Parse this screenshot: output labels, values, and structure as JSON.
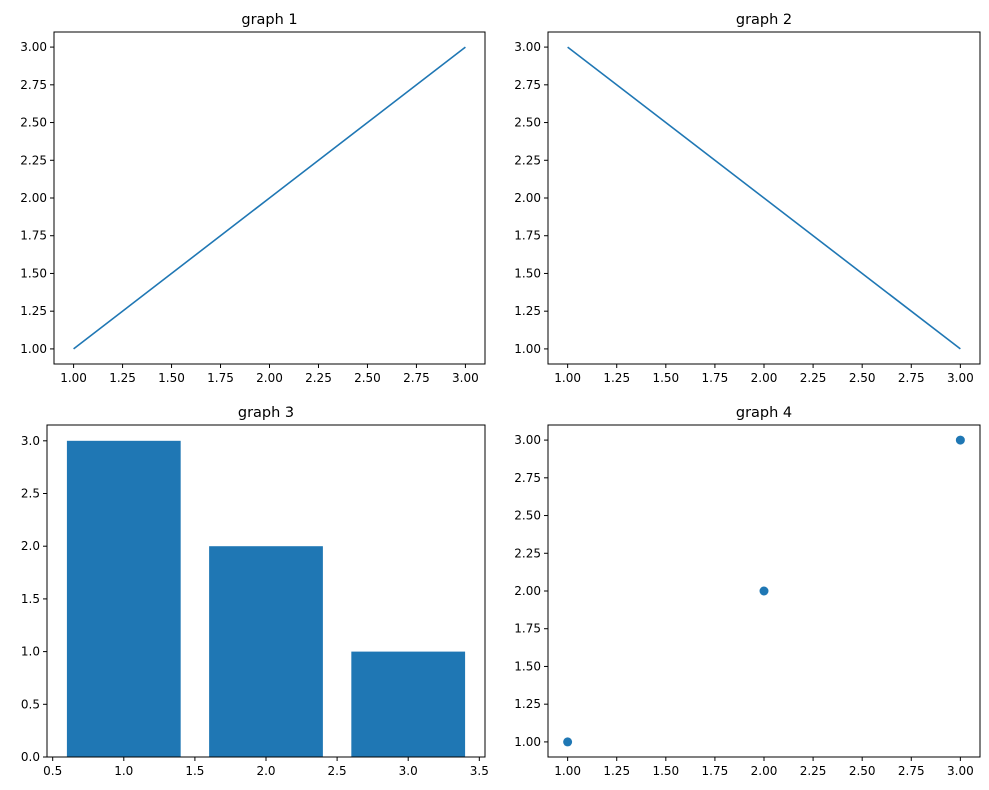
{
  "chart_data": [
    {
      "type": "line",
      "title": "graph 1",
      "x": [
        1,
        2,
        3
      ],
      "y": [
        1,
        2,
        3
      ],
      "xlim": [
        0.9,
        3.1
      ],
      "ylim": [
        0.9,
        3.1
      ],
      "xticks": [
        1.0,
        1.25,
        1.5,
        1.75,
        2.0,
        2.25,
        2.5,
        2.75,
        3.0
      ],
      "yticks": [
        1.0,
        1.25,
        1.5,
        1.75,
        2.0,
        2.25,
        2.5,
        2.75,
        3.0
      ],
      "xtick_labels": [
        "1.00",
        "1.25",
        "1.50",
        "1.75",
        "2.00",
        "2.25",
        "2.50",
        "2.75",
        "3.00"
      ],
      "ytick_labels": [
        "1.00",
        "1.25",
        "1.50",
        "1.75",
        "2.00",
        "2.25",
        "2.50",
        "2.75",
        "3.00"
      ],
      "color": "#1f77b4",
      "grid": false
    },
    {
      "type": "line",
      "title": "graph 2",
      "x": [
        1,
        2,
        3
      ],
      "y": [
        3,
        2,
        1
      ],
      "xlim": [
        0.9,
        3.1
      ],
      "ylim": [
        0.9,
        3.1
      ],
      "xticks": [
        1.0,
        1.25,
        1.5,
        1.75,
        2.0,
        2.25,
        2.5,
        2.75,
        3.0
      ],
      "yticks": [
        1.0,
        1.25,
        1.5,
        1.75,
        2.0,
        2.25,
        2.5,
        2.75,
        3.0
      ],
      "xtick_labels": [
        "1.00",
        "1.25",
        "1.50",
        "1.75",
        "2.00",
        "2.25",
        "2.50",
        "2.75",
        "3.00"
      ],
      "ytick_labels": [
        "1.00",
        "1.25",
        "1.50",
        "1.75",
        "2.00",
        "2.25",
        "2.50",
        "2.75",
        "3.00"
      ],
      "color": "#1f77b4",
      "grid": false
    },
    {
      "type": "bar",
      "title": "graph 3",
      "x": [
        1,
        2,
        3
      ],
      "values": [
        3,
        2,
        1
      ],
      "bar_width": 0.8,
      "xlim": [
        0.46,
        3.54
      ],
      "ylim": [
        0,
        3.15
      ],
      "xticks": [
        0.5,
        1.0,
        1.5,
        2.0,
        2.5,
        3.0,
        3.5
      ],
      "yticks": [
        0.0,
        0.5,
        1.0,
        1.5,
        2.0,
        2.5,
        3.0
      ],
      "xtick_labels": [
        "0.5",
        "1.0",
        "1.5",
        "2.0",
        "2.5",
        "3.0",
        "3.5"
      ],
      "ytick_labels": [
        "0.0",
        "0.5",
        "1.0",
        "1.5",
        "2.0",
        "2.5",
        "3.0"
      ],
      "color": "#1f77b4",
      "grid": false
    },
    {
      "type": "scatter",
      "title": "graph 4",
      "x": [
        1,
        2,
        3
      ],
      "y": [
        1,
        2,
        3
      ],
      "xlim": [
        0.9,
        3.1
      ],
      "ylim": [
        0.9,
        3.1
      ],
      "xticks": [
        1.0,
        1.25,
        1.5,
        1.75,
        2.0,
        2.25,
        2.5,
        2.75,
        3.0
      ],
      "yticks": [
        1.0,
        1.25,
        1.5,
        1.75,
        2.0,
        2.25,
        2.5,
        2.75,
        3.0
      ],
      "xtick_labels": [
        "1.00",
        "1.25",
        "1.50",
        "1.75",
        "2.00",
        "2.25",
        "2.50",
        "2.75",
        "3.00"
      ],
      "ytick_labels": [
        "1.00",
        "1.25",
        "1.50",
        "1.75",
        "2.00",
        "2.25",
        "2.50",
        "2.75",
        "3.00"
      ],
      "color": "#1f77b4",
      "grid": false
    }
  ]
}
